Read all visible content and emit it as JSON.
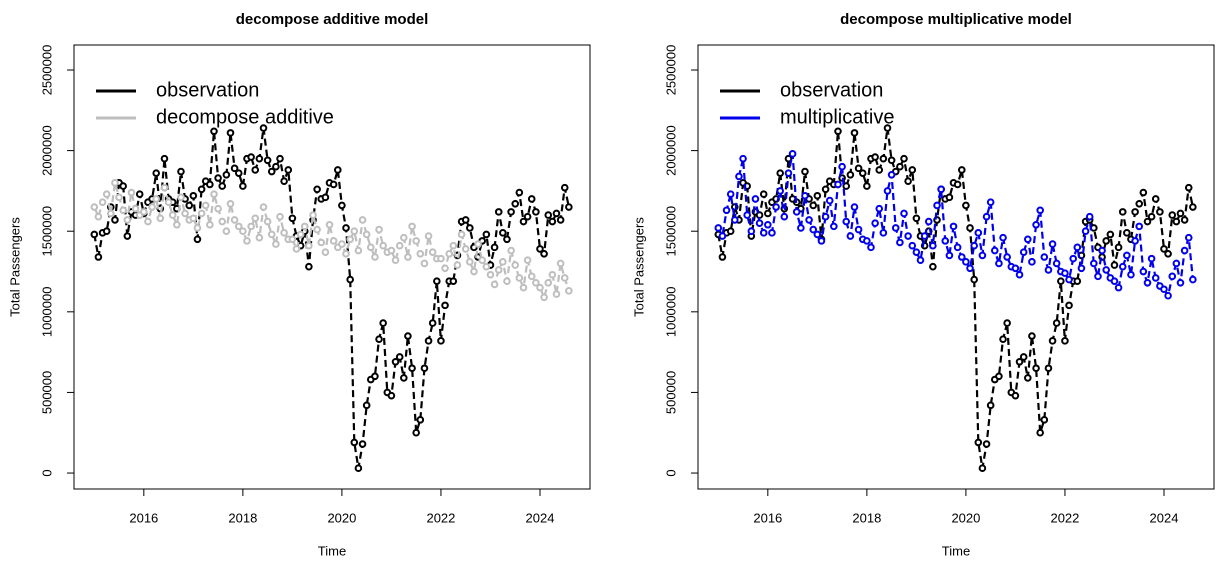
{
  "chart_data": [
    {
      "type": "line",
      "title": "decompose additive model",
      "x_label": "Time",
      "y_label": "Total Passengers",
      "x": [
        2015,
        2015.083,
        2015.167,
        2015.25,
        2015.333,
        2015.417,
        2015.5,
        2015.583,
        2015.667,
        2015.75,
        2015.833,
        2015.917,
        2016,
        2016.083,
        2016.167,
        2016.25,
        2016.333,
        2016.417,
        2016.5,
        2016.583,
        2016.667,
        2016.75,
        2016.833,
        2016.917,
        2017,
        2017.083,
        2017.167,
        2017.25,
        2017.333,
        2017.417,
        2017.5,
        2017.583,
        2017.667,
        2017.75,
        2017.833,
        2017.917,
        2018,
        2018.083,
        2018.167,
        2018.25,
        2018.333,
        2018.417,
        2018.5,
        2018.583,
        2018.667,
        2018.75,
        2018.833,
        2018.917,
        2019,
        2019.083,
        2019.167,
        2019.25,
        2019.333,
        2019.417,
        2019.5,
        2019.583,
        2019.667,
        2019.75,
        2019.833,
        2019.917,
        2020,
        2020.083,
        2020.167,
        2020.25,
        2020.333,
        2020.417,
        2020.5,
        2020.583,
        2020.667,
        2020.75,
        2020.833,
        2020.917,
        2021,
        2021.083,
        2021.167,
        2021.25,
        2021.333,
        2021.417,
        2021.5,
        2021.583,
        2021.667,
        2021.75,
        2021.833,
        2021.917,
        2022,
        2022.083,
        2022.167,
        2022.25,
        2022.333,
        2022.417,
        2022.5,
        2022.583,
        2022.667,
        2022.75,
        2022.833,
        2022.917,
        2023,
        2023.083,
        2023.167,
        2023.25,
        2023.333,
        2023.417,
        2023.5,
        2023.583,
        2023.667,
        2023.75,
        2023.833,
        2023.917,
        2024,
        2024.083,
        2024.167,
        2024.25,
        2024.333,
        2024.417,
        2024.5,
        2024.583
      ],
      "series": [
        {
          "name": "observation",
          "color": "#000000",
          "values": [
            1480000,
            1340000,
            1490000,
            1500000,
            1650000,
            1570000,
            1800000,
            1780000,
            1470000,
            1620000,
            1600000,
            1730000,
            1610000,
            1680000,
            1700000,
            1860000,
            1640000,
            1950000,
            1700000,
            1680000,
            1640000,
            1870000,
            1700000,
            1660000,
            1720000,
            1450000,
            1760000,
            1810000,
            1790000,
            2120000,
            1830000,
            1780000,
            1850000,
            2110000,
            1890000,
            1860000,
            1780000,
            1950000,
            1960000,
            1880000,
            1950000,
            2140000,
            1940000,
            1870000,
            1900000,
            1950000,
            1810000,
            1880000,
            1580000,
            1470000,
            1410000,
            1500000,
            1280000,
            1570000,
            1760000,
            1700000,
            1710000,
            1800000,
            1790000,
            1880000,
            1660000,
            1520000,
            1200000,
            190000,
            30000,
            180000,
            420000,
            580000,
            600000,
            830000,
            930000,
            500000,
            480000,
            690000,
            720000,
            590000,
            850000,
            650000,
            250000,
            330000,
            650000,
            820000,
            930000,
            1190000,
            820000,
            1040000,
            1190000,
            1190000,
            1350000,
            1560000,
            1570000,
            1520000,
            1400000,
            1340000,
            1440000,
            1480000,
            1290000,
            1400000,
            1620000,
            1490000,
            1450000,
            1620000,
            1670000,
            1740000,
            1560000,
            1590000,
            1700000,
            1620000,
            1390000,
            1360000,
            1600000,
            1560000,
            1610000,
            1570000,
            1770000,
            1650000
          ]
        },
        {
          "name": "decompose additive",
          "color": "#bebebe",
          "values": [
            1650000,
            1590000,
            1680000,
            1730000,
            1610000,
            1800000,
            1710000,
            1630000,
            1570000,
            1740000,
            1640000,
            1600000,
            1620000,
            1560000,
            1650000,
            1700000,
            1580000,
            1770000,
            1680000,
            1600000,
            1540000,
            1710000,
            1610000,
            1570000,
            1580000,
            1520000,
            1610000,
            1660000,
            1540000,
            1730000,
            1640000,
            1560000,
            1500000,
            1670000,
            1570000,
            1530000,
            1500000,
            1440000,
            1530000,
            1580000,
            1460000,
            1650000,
            1560000,
            1480000,
            1420000,
            1590000,
            1490000,
            1450000,
            1450000,
            1390000,
            1480000,
            1530000,
            1410000,
            1600000,
            1510000,
            1430000,
            1370000,
            1540000,
            1440000,
            1400000,
            1420000,
            1360000,
            1450000,
            1500000,
            1380000,
            1570000,
            1480000,
            1400000,
            1340000,
            1510000,
            1410000,
            1370000,
            1380000,
            1320000,
            1410000,
            1460000,
            1340000,
            1530000,
            1440000,
            1360000,
            1300000,
            1470000,
            1370000,
            1330000,
            1330000,
            1270000,
            1360000,
            1410000,
            1290000,
            1480000,
            1390000,
            1310000,
            1250000,
            1420000,
            1320000,
            1280000,
            1230000,
            1170000,
            1260000,
            1310000,
            1190000,
            1380000,
            1290000,
            1210000,
            1150000,
            1320000,
            1220000,
            1180000,
            1150000,
            1090000,
            1180000,
            1230000,
            1110000,
            1300000,
            1210000,
            1130000
          ]
        }
      ],
      "xlim": [
        2014.59,
        2025.01
      ],
      "xticks": [
        2016,
        2018,
        2020,
        2022,
        2024
      ],
      "ylim": [
        -99000,
        2655000
      ],
      "yticks": [
        0,
        500000,
        1000000,
        1500000,
        2000000,
        2500000
      ],
      "legend": "top-left"
    },
    {
      "type": "line",
      "title": "decompose multiplicative model",
      "x_label": "Time",
      "y_label": "Total Passengers",
      "x": [
        2015,
        2015.083,
        2015.167,
        2015.25,
        2015.333,
        2015.417,
        2015.5,
        2015.583,
        2015.667,
        2015.75,
        2015.833,
        2015.917,
        2016,
        2016.083,
        2016.167,
        2016.25,
        2016.333,
        2016.417,
        2016.5,
        2016.583,
        2016.667,
        2016.75,
        2016.833,
        2016.917,
        2017,
        2017.083,
        2017.167,
        2017.25,
        2017.333,
        2017.417,
        2017.5,
        2017.583,
        2017.667,
        2017.75,
        2017.833,
        2017.917,
        2018,
        2018.083,
        2018.167,
        2018.25,
        2018.333,
        2018.417,
        2018.5,
        2018.583,
        2018.667,
        2018.75,
        2018.833,
        2018.917,
        2019,
        2019.083,
        2019.167,
        2019.25,
        2019.333,
        2019.417,
        2019.5,
        2019.583,
        2019.667,
        2019.75,
        2019.833,
        2019.917,
        2020,
        2020.083,
        2020.167,
        2020.25,
        2020.333,
        2020.417,
        2020.5,
        2020.583,
        2020.667,
        2020.75,
        2020.833,
        2020.917,
        2021,
        2021.083,
        2021.167,
        2021.25,
        2021.333,
        2021.417,
        2021.5,
        2021.583,
        2021.667,
        2021.75,
        2021.833,
        2021.917,
        2022,
        2022.083,
        2022.167,
        2022.25,
        2022.333,
        2022.417,
        2022.5,
        2022.583,
        2022.667,
        2022.75,
        2022.833,
        2022.917,
        2023,
        2023.083,
        2023.167,
        2023.25,
        2023.333,
        2023.417,
        2023.5,
        2023.583,
        2023.667,
        2023.75,
        2023.833,
        2023.917,
        2024,
        2024.083,
        2024.167,
        2024.25,
        2024.333,
        2024.417,
        2024.5,
        2024.583
      ],
      "series": [
        {
          "name": "observation",
          "color": "#000000",
          "values": [
            1480000,
            1340000,
            1490000,
            1500000,
            1650000,
            1570000,
            1800000,
            1780000,
            1470000,
            1620000,
            1600000,
            1730000,
            1610000,
            1680000,
            1700000,
            1860000,
            1640000,
            1950000,
            1700000,
            1680000,
            1640000,
            1870000,
            1700000,
            1660000,
            1720000,
            1450000,
            1760000,
            1810000,
            1790000,
            2120000,
            1830000,
            1780000,
            1850000,
            2110000,
            1890000,
            1860000,
            1780000,
            1950000,
            1960000,
            1880000,
            1950000,
            2140000,
            1940000,
            1870000,
            1900000,
            1950000,
            1810000,
            1880000,
            1580000,
            1470000,
            1410000,
            1500000,
            1280000,
            1570000,
            1760000,
            1700000,
            1710000,
            1800000,
            1790000,
            1880000,
            1660000,
            1520000,
            1200000,
            190000,
            30000,
            180000,
            420000,
            580000,
            600000,
            830000,
            930000,
            500000,
            480000,
            690000,
            720000,
            590000,
            850000,
            650000,
            250000,
            330000,
            650000,
            820000,
            930000,
            1190000,
            820000,
            1040000,
            1190000,
            1190000,
            1350000,
            1560000,
            1570000,
            1520000,
            1400000,
            1340000,
            1440000,
            1480000,
            1290000,
            1400000,
            1620000,
            1490000,
            1450000,
            1620000,
            1670000,
            1740000,
            1560000,
            1590000,
            1700000,
            1620000,
            1390000,
            1360000,
            1600000,
            1560000,
            1610000,
            1570000,
            1770000,
            1650000
          ]
        },
        {
          "name": "multiplicative",
          "color": "#0000ee",
          "values": [
            1520000,
            1470000,
            1630000,
            1730000,
            1570000,
            1840000,
            1950000,
            1600000,
            1500000,
            1700000,
            1550000,
            1490000,
            1540000,
            1490000,
            1650000,
            1750000,
            1590000,
            1860000,
            1980000,
            1620000,
            1520000,
            1720000,
            1570000,
            1510000,
            1480000,
            1440000,
            1590000,
            1690000,
            1530000,
            1790000,
            1900000,
            1560000,
            1470000,
            1650000,
            1510000,
            1450000,
            1440000,
            1400000,
            1550000,
            1640000,
            1490000,
            1750000,
            1850000,
            1520000,
            1430000,
            1610000,
            1470000,
            1410000,
            1370000,
            1320000,
            1470000,
            1560000,
            1410000,
            1660000,
            1760000,
            1440000,
            1350000,
            1530000,
            1400000,
            1340000,
            1310000,
            1270000,
            1410000,
            1490000,
            1350000,
            1590000,
            1680000,
            1380000,
            1300000,
            1460000,
            1340000,
            1280000,
            1270000,
            1230000,
            1370000,
            1450000,
            1310000,
            1540000,
            1630000,
            1340000,
            1260000,
            1420000,
            1300000,
            1250000,
            1240000,
            1200000,
            1330000,
            1400000,
            1270000,
            1500000,
            1590000,
            1300000,
            1220000,
            1380000,
            1260000,
            1210000,
            1190000,
            1150000,
            1280000,
            1350000,
            1230000,
            1440000,
            1530000,
            1250000,
            1180000,
            1330000,
            1210000,
            1160000,
            1140000,
            1100000,
            1220000,
            1300000,
            1180000,
            1380000,
            1460000,
            1200000
          ]
        }
      ],
      "xlim": [
        2014.59,
        2025.01
      ],
      "xticks": [
        2016,
        2018,
        2020,
        2022,
        2024
      ],
      "ylim": [
        -99000,
        2655000
      ],
      "yticks": [
        0,
        500000,
        1000000,
        1500000,
        2000000,
        2500000
      ],
      "legend": "top-left"
    }
  ]
}
